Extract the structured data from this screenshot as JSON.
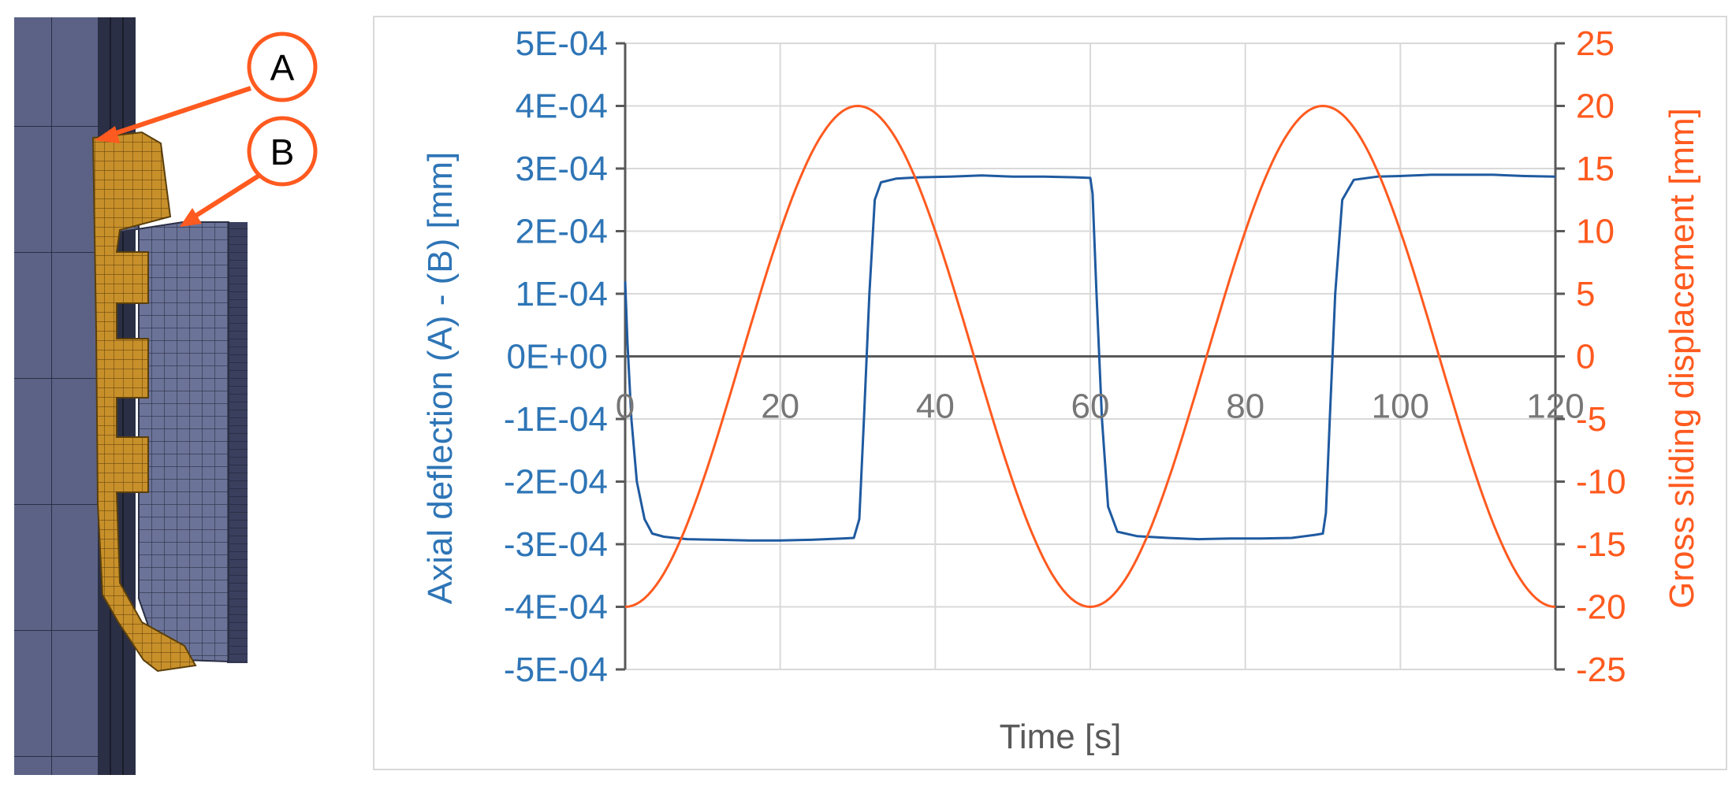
{
  "figure": {
    "callouts": [
      {
        "label": "A"
      },
      {
        "label": "B"
      }
    ],
    "colors": {
      "mesh_base": "#5b6286",
      "mesh_dark": "#2b2f45",
      "mesh_gold": "#c8902a",
      "callout": "#ff5a1f",
      "left_series": "#1f5aa0",
      "right_series": "#ff5a1f",
      "grid": "#d9d9d9"
    }
  },
  "chart_data": {
    "type": "line",
    "title": "",
    "xlabel": "Time [s]",
    "ylabel_left": "Axial deflection (A) - (B) [mm]",
    "ylabel_right": "Gross sliding displacement [mm]",
    "xlim": [
      0,
      120
    ],
    "ylim_left": [
      -0.0005,
      0.0005
    ],
    "ylim_right": [
      -25,
      25
    ],
    "x_ticks": [
      "0",
      "20",
      "40",
      "60",
      "80",
      "100",
      "120"
    ],
    "y_ticks_left": [
      "5E-04",
      "4E-04",
      "3E-04",
      "2E-04",
      "1E-04",
      "0E+00",
      "-1E-04",
      "-2E-04",
      "-3E-04",
      "-4E-04",
      "-5E-04"
    ],
    "y_ticks_right": [
      "25",
      "20",
      "15",
      "10",
      "5",
      "0",
      "-5",
      "-10",
      "-15",
      "-20",
      "-25"
    ],
    "grid": true,
    "series": [
      {
        "axis": "left",
        "x": [
          0,
          0.3,
          0.8,
          1.5,
          2.5,
          3.5,
          5,
          8,
          12,
          16,
          20,
          24,
          28,
          29.5,
          30.2,
          30.8,
          31.5,
          32.2,
          33,
          35,
          38,
          42,
          46,
          50,
          54,
          58,
          60,
          60.3,
          60.8,
          61.5,
          62.3,
          63.5,
          66,
          70,
          74,
          78,
          82,
          86,
          89,
          90,
          90.4,
          90.9,
          91.6,
          92.5,
          94,
          97,
          100,
          104,
          108,
          112,
          116,
          120
        ],
        "values": [
          0.00012,
          2e-05,
          -0.0001,
          -0.0002,
          -0.00026,
          -0.000283,
          -0.000288,
          -0.000292,
          -0.000293,
          -0.000294,
          -0.000294,
          -0.000293,
          -0.000291,
          -0.00029,
          -0.00026,
          -0.0001,
          0.0001,
          0.00025,
          0.000278,
          0.000284,
          0.000286,
          0.000287,
          0.000289,
          0.000287,
          0.000287,
          0.000286,
          0.000285,
          0.00026,
          0.0001,
          -0.0001,
          -0.00024,
          -0.00028,
          -0.000287,
          -0.00029,
          -0.000292,
          -0.000291,
          -0.000291,
          -0.00029,
          -0.000285,
          -0.000283,
          -0.00025,
          -0.0001,
          0.0001,
          0.00025,
          0.000282,
          0.000287,
          0.000288,
          0.00029,
          0.00029,
          0.00029,
          0.000288,
          0.000287
        ]
      },
      {
        "axis": "right",
        "shape": "-20*cos(2*pi*t/60)",
        "x": [
          0,
          3,
          6,
          9,
          12,
          15,
          18,
          21,
          24,
          27,
          30,
          33,
          36,
          39,
          42,
          45,
          48,
          51,
          54,
          57,
          60,
          63,
          66,
          69,
          72,
          75,
          78,
          81,
          84,
          87,
          90,
          93,
          96,
          99,
          102,
          105,
          108,
          111,
          114,
          117,
          120
        ],
        "values": [
          -20,
          -19.02,
          -16.18,
          -11.76,
          -6.18,
          0,
          6.18,
          11.76,
          16.18,
          19.02,
          20,
          19.02,
          16.18,
          11.76,
          6.18,
          0,
          -6.18,
          -11.76,
          -16.18,
          -19.02,
          -20,
          -19.02,
          -16.18,
          -11.76,
          -6.18,
          0,
          6.18,
          11.76,
          16.18,
          19.02,
          20,
          19.02,
          16.18,
          11.76,
          6.18,
          0,
          -6.18,
          -11.76,
          -16.18,
          -19.02,
          -20
        ]
      }
    ]
  }
}
